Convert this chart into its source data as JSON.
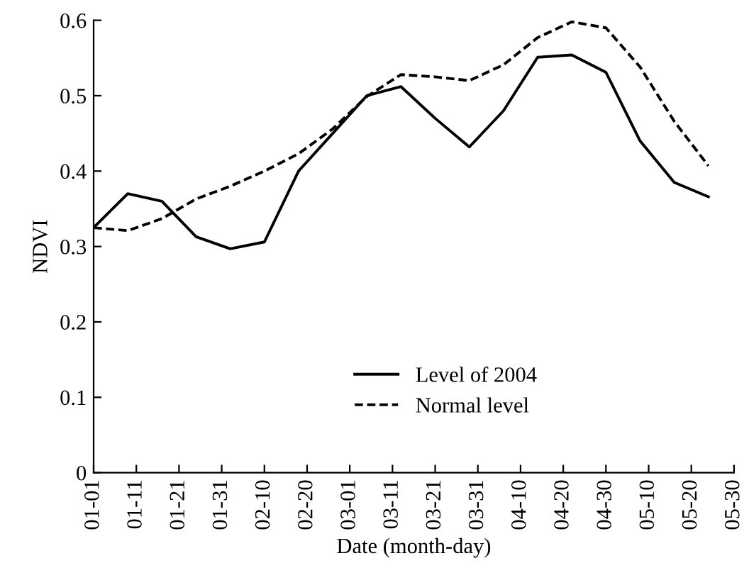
{
  "chart_data": {
    "type": "line",
    "xlabel": "Date (month-day)",
    "ylabel": "NDVI",
    "x": [
      "2004-01-01",
      "2004-01-09",
      "2004-01-17",
      "2004-01-25",
      "2004-02-02",
      "2004-02-10",
      "2004-02-18",
      "2004-02-26",
      "2004-03-05",
      "2004-03-13",
      "2004-03-21",
      "2004-03-29",
      "2004-04-06",
      "2004-04-14",
      "2004-04-22",
      "2004-04-30",
      "2004-05-08",
      "2004-05-16",
      "2004-05-24"
    ],
    "series": [
      {
        "name": "Level of 2004",
        "color": "#000000",
        "line_style": "solid",
        "values": [
          0.325,
          0.37,
          0.36,
          0.313,
          0.297,
          0.306,
          0.4,
          0.45,
          0.5,
          0.512,
          0.47,
          0.432,
          0.48,
          0.551,
          0.554,
          0.531,
          0.44,
          0.385,
          0.366
        ]
      },
      {
        "name": "Normal level",
        "color": "#000000",
        "line_style": "dashed",
        "values": [
          0.325,
          0.321,
          0.337,
          0.363,
          0.38,
          0.4,
          0.423,
          0.456,
          0.499,
          0.528,
          0.525,
          0.52,
          0.541,
          0.577,
          0.598,
          0.59,
          0.538,
          0.466,
          0.407
        ]
      }
    ],
    "xlim": [
      "2004-01-01",
      "2004-05-30"
    ],
    "xticks": [
      {
        "value": "2004-01-01",
        "label": "01-01"
      },
      {
        "value": "2004-01-11",
        "label": "01-11"
      },
      {
        "value": "2004-01-21",
        "label": "01-21"
      },
      {
        "value": "2004-01-31",
        "label": "01-31"
      },
      {
        "value": "2004-02-10",
        "label": "02-10"
      },
      {
        "value": "2004-02-20",
        "label": "02-20"
      },
      {
        "value": "2004-03-01",
        "label": "03-01"
      },
      {
        "value": "2004-03-11",
        "label": "03-11"
      },
      {
        "value": "2004-03-21",
        "label": "03-21"
      },
      {
        "value": "2004-03-31",
        "label": "03-31"
      },
      {
        "value": "2004-04-10",
        "label": "04-10"
      },
      {
        "value": "2004-04-20",
        "label": "04-20"
      },
      {
        "value": "2004-04-30",
        "label": "04-30"
      },
      {
        "value": "2004-05-10",
        "label": "05-10"
      },
      {
        "value": "2004-05-20",
        "label": "05-20"
      },
      {
        "value": "2004-05-30",
        "label": "05-30"
      }
    ],
    "ylim": [
      0,
      0.6
    ],
    "yticks": [
      0,
      0.1,
      0.2,
      0.3,
      0.4,
      0.5,
      0.6
    ],
    "grid": false,
    "legend": "bottom"
  }
}
